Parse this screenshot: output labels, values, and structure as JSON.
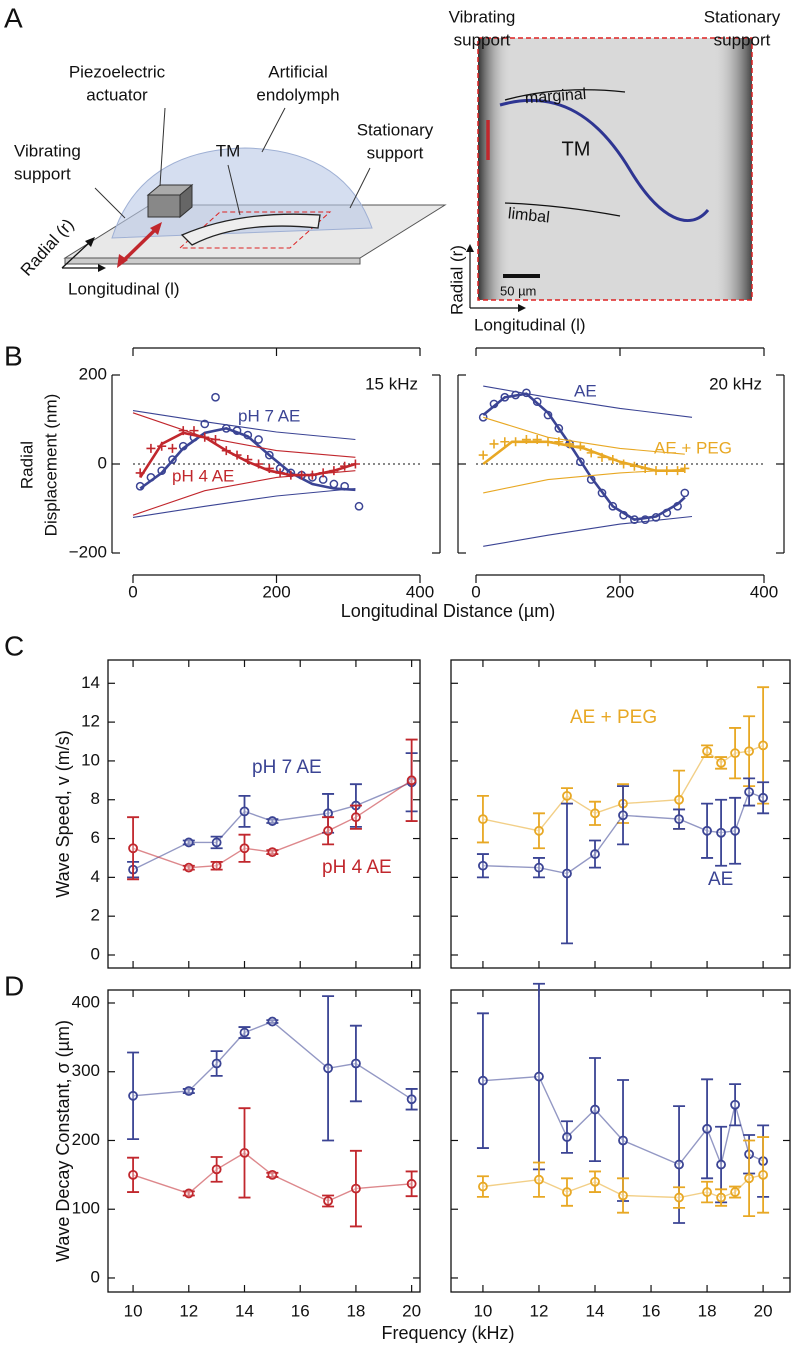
{
  "panels": [
    "A",
    "B",
    "C",
    "D"
  ],
  "schematic": [
    [
      "Piezoelectric",
      "actuator"
    ],
    [
      "Artificial",
      "endolymph"
    ],
    [
      "TM"
    ],
    [
      "Vibrating",
      "support"
    ],
    [
      "Stationary",
      "support"
    ],
    [
      "Radial (r)"
    ],
    [
      "Longitudinal (l)"
    ]
  ],
  "micrograph": [
    [
      "Vibrating",
      "support"
    ],
    [
      "Stationary",
      "support"
    ],
    [
      "marginal"
    ],
    [
      "TM"
    ],
    [
      "limbal"
    ],
    [
      "50 µm"
    ],
    [
      "Radial (r)"
    ],
    [
      "Longitudinal (l)"
    ]
  ],
  "chart_data": [
    {
      "type": "line",
      "ylabel": [
        "Radial",
        "Displacement (nm)"
      ],
      "xlabel": "Longitudinal Distance (µm)",
      "xlim": [
        0,
        400
      ],
      "xticks": [
        0,
        200,
        400
      ],
      "ylim": [
        -200,
        200
      ],
      "yticks": [
        {
          "value": -200,
          "label": "−200"
        },
        0,
        200
      ],
      "annotations": [
        {
          "text": "15 kHz",
          "color": "#111111"
        },
        {
          "text": "pH 7 AE",
          "color": "#3b4494"
        },
        {
          "text": "pH 4 AE",
          "color": "#c1272d"
        }
      ],
      "series": [
        {
          "color": "#3b4494",
          "style": "markers",
          "marker": "o",
          "x": [
            10,
            25,
            40,
            55,
            70,
            85,
            100,
            115,
            130,
            145,
            160,
            175,
            190,
            205,
            220,
            235,
            250,
            265,
            280,
            295,
            315
          ],
          "values": [
            -50,
            -30,
            -15,
            10,
            40,
            60,
            90,
            150,
            80,
            75,
            65,
            55,
            20,
            -10,
            -20,
            -25,
            -30,
            -35,
            -45,
            -50,
            -95
          ]
        },
        {
          "color": "#3b4494",
          "style": "thick",
          "x": [
            10,
            40,
            70,
            100,
            130,
            160,
            190,
            220,
            250,
            280,
            310
          ],
          "values": [
            -55,
            -20,
            35,
            70,
            80,
            62,
            20,
            -20,
            -45,
            -55,
            -58
          ]
        },
        {
          "color": "#3b4494",
          "style": "thin",
          "x": [
            0,
            100,
            200,
            310
          ],
          "values": [
            120,
            95,
            72,
            55
          ]
        },
        {
          "color": "#3b4494",
          "style": "thin",
          "x": [
            0,
            100,
            200,
            310
          ],
          "values": [
            -120,
            -95,
            -72,
            -55
          ]
        },
        {
          "color": "#c1272d",
          "style": "markers",
          "marker": "+",
          "x": [
            10,
            25,
            40,
            55,
            70,
            85,
            100,
            115,
            130,
            145,
            160,
            175,
            190,
            205,
            220,
            235,
            250,
            265,
            280,
            295,
            310
          ],
          "values": [
            -20,
            35,
            40,
            35,
            75,
            75,
            60,
            55,
            30,
            20,
            10,
            0,
            -10,
            -20,
            -25,
            -25,
            -25,
            -20,
            -15,
            -5,
            0
          ]
        },
        {
          "color": "#c1272d",
          "style": "thick",
          "x": [
            10,
            40,
            70,
            100,
            130,
            160,
            190,
            220,
            250,
            280,
            310
          ],
          "values": [
            -30,
            45,
            70,
            60,
            30,
            5,
            -15,
            -25,
            -25,
            -15,
            0
          ]
        },
        {
          "color": "#c1272d",
          "style": "thin",
          "x": [
            0,
            100,
            200,
            310
          ],
          "values": [
            115,
            60,
            30,
            15
          ]
        },
        {
          "color": "#c1272d",
          "style": "thin",
          "x": [
            0,
            100,
            200,
            310
          ],
          "values": [
            -115,
            -60,
            -30,
            -15
          ]
        }
      ]
    },
    {
      "type": "line",
      "xlim": [
        0,
        400
      ],
      "xticks": [
        0,
        200,
        400
      ],
      "ylim": [
        -200,
        200
      ],
      "annotations": [
        {
          "text": "20 kHz",
          "color": "#111111"
        },
        {
          "text": "AE",
          "color": "#3b4494"
        },
        {
          "text": "AE + PEG",
          "color": "#e8a824"
        }
      ],
      "series": [
        {
          "color": "#3b4494",
          "style": "markers",
          "marker": "o",
          "x": [
            10,
            25,
            40,
            55,
            70,
            85,
            100,
            115,
            130,
            145,
            160,
            175,
            190,
            205,
            220,
            235,
            250,
            265,
            280,
            290
          ],
          "values": [
            105,
            135,
            150,
            155,
            160,
            140,
            110,
            80,
            45,
            5,
            -35,
            -65,
            -95,
            -115,
            -125,
            -125,
            -120,
            -110,
            -95,
            -65
          ]
        },
        {
          "color": "#3b4494",
          "style": "thick",
          "x": [
            10,
            40,
            70,
            100,
            130,
            160,
            190,
            220,
            250,
            280,
            290
          ],
          "values": [
            110,
            150,
            158,
            115,
            45,
            -30,
            -95,
            -125,
            -118,
            -90,
            -75
          ]
        },
        {
          "color": "#3b4494",
          "style": "thin",
          "x": [
            10,
            100,
            200,
            300
          ],
          "values": [
            175,
            150,
            125,
            105
          ]
        },
        {
          "color": "#3b4494",
          "style": "thin",
          "x": [
            10,
            100,
            200,
            300
          ],
          "values": [
            -185,
            -160,
            -135,
            -118
          ]
        },
        {
          "color": "#e8a824",
          "style": "markers",
          "marker": "+",
          "x": [
            10,
            25,
            40,
            55,
            70,
            85,
            100,
            115,
            130,
            145,
            160,
            175,
            190,
            205,
            220,
            235,
            250,
            265,
            280,
            290
          ],
          "values": [
            20,
            45,
            50,
            50,
            55,
            55,
            50,
            50,
            45,
            40,
            25,
            15,
            10,
            0,
            -5,
            -10,
            -15,
            -15,
            -15,
            -10
          ]
        },
        {
          "color": "#e8a824",
          "style": "thick",
          "x": [
            10,
            50,
            100,
            150,
            200,
            250,
            290
          ],
          "values": [
            0,
            50,
            50,
            35,
            5,
            -15,
            -15
          ]
        },
        {
          "color": "#e8a824",
          "style": "thin",
          "x": [
            10,
            100,
            200,
            290
          ],
          "values": [
            105,
            60,
            35,
            22
          ]
        },
        {
          "color": "#e8a824",
          "style": "thin",
          "x": [
            10,
            100,
            200,
            290
          ],
          "values": [
            -65,
            -35,
            -20,
            -12
          ]
        }
      ]
    },
    {
      "type": "errorbar",
      "ylabel": "Wave Speed, v (m/s)",
      "xlim": [
        9.1,
        20.3
      ],
      "ylim": [
        -0.67,
        15.2
      ],
      "yticks": [
        0,
        2,
        4,
        6,
        8,
        10,
        12,
        14
      ],
      "series": [
        {
          "name": "pH 7 AE",
          "color": "#3b4494",
          "x": [
            10,
            12,
            13,
            14,
            15,
            17,
            18,
            20
          ],
          "values": [
            4.4,
            5.8,
            5.8,
            7.4,
            6.9,
            7.3,
            7.7,
            8.9
          ],
          "errors": [
            0.4,
            0.1,
            0.3,
            0.8,
            0.1,
            1.0,
            1.1,
            1.5
          ]
        },
        {
          "name": "pH 4 AE",
          "color": "#c1272d",
          "x": [
            10,
            12,
            13,
            14,
            15,
            17,
            18,
            20
          ],
          "values": [
            5.5,
            4.5,
            4.6,
            5.5,
            5.3,
            6.4,
            7.1,
            9.0
          ],
          "errors": [
            1.6,
            0.1,
            0.2,
            0.7,
            0.1,
            0.7,
            0.6,
            2.1
          ]
        }
      ]
    },
    {
      "type": "errorbar",
      "xlim": [
        8.86,
        20.96
      ],
      "ylim": [
        -0.67,
        15.2
      ],
      "series": [
        {
          "name": "AE + PEG",
          "color": "#e8a824",
          "x": [
            10,
            12,
            13,
            14,
            15,
            17,
            18,
            18.5,
            19,
            19.5,
            20
          ],
          "values": [
            7.0,
            6.4,
            8.2,
            7.3,
            7.8,
            8.0,
            10.5,
            9.9,
            10.4,
            10.5,
            10.8
          ],
          "errors": [
            1.2,
            0.9,
            0.4,
            0.6,
            1.0,
            1.5,
            0.3,
            0.3,
            1.3,
            1.8,
            3.0
          ]
        },
        {
          "name": "AE",
          "color": "#3b4494",
          "x": [
            10,
            12,
            13,
            14,
            15,
            17,
            18,
            18.5,
            19,
            19.5,
            20
          ],
          "values": [
            4.6,
            4.5,
            4.2,
            5.2,
            7.2,
            7.0,
            6.4,
            6.3,
            6.4,
            8.4,
            8.1
          ],
          "errors": [
            0.6,
            0.5,
            3.6,
            0.7,
            1.5,
            0.5,
            1.4,
            1.7,
            1.7,
            0.7,
            0.8
          ]
        }
      ]
    },
    {
      "type": "errorbar",
      "ylabel": "Wave Decay Constant, σ (µm)",
      "xlabel": "Frequency (kHz)",
      "xlim": [
        9.1,
        20.3
      ],
      "xticks": [
        10,
        12,
        14,
        16,
        18,
        20
      ],
      "ylim": [
        -20.4,
        418.9
      ],
      "yticks": [
        0,
        100,
        200,
        300,
        400
      ],
      "series": [
        {
          "color": "#3b4494",
          "x": [
            10,
            12,
            13,
            14,
            15,
            17,
            18,
            20
          ],
          "values": [
            265,
            272,
            312,
            357,
            373,
            305,
            312,
            260
          ],
          "errors": [
            63,
            3,
            18,
            8,
            2,
            105,
            55,
            15
          ]
        },
        {
          "color": "#c1272d",
          "x": [
            10,
            12,
            13,
            14,
            15,
            17,
            18,
            20
          ],
          "values": [
            150,
            123,
            158,
            182,
            150,
            112,
            130,
            137
          ],
          "errors": [
            25,
            3,
            18,
            65,
            3,
            8,
            55,
            18
          ]
        }
      ]
    },
    {
      "type": "errorbar",
      "xlim": [
        8.86,
        20.96
      ],
      "xticks": [
        10,
        12,
        14,
        16,
        18,
        20
      ],
      "ylim": [
        -20.4,
        418.9
      ],
      "series": [
        {
          "color": "#3b4494",
          "x": [
            10,
            12,
            13,
            14,
            15,
            17,
            18,
            18.5,
            19,
            19.5,
            20
          ],
          "values": [
            287,
            293,
            205,
            245,
            200,
            165,
            217,
            165,
            252,
            180,
            170
          ],
          "errors": [
            98,
            135,
            23,
            75,
            88,
            85,
            72,
            55,
            30,
            28,
            52
          ]
        },
        {
          "color": "#e8a824",
          "x": [
            10,
            12,
            13,
            14,
            15,
            17,
            18,
            18.5,
            19,
            19.5,
            20
          ],
          "values": [
            133,
            143,
            125,
            140,
            120,
            117,
            125,
            117,
            125,
            145,
            150
          ],
          "errors": [
            15,
            25,
            20,
            15,
            25,
            15,
            15,
            12,
            8,
            55,
            55
          ]
        }
      ]
    }
  ]
}
